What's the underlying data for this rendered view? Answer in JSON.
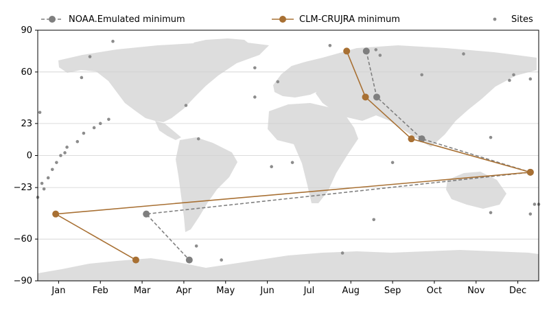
{
  "chart_data": {
    "type": "line",
    "x_ticks": [
      "Jan",
      "Feb",
      "Mar",
      "Apr",
      "May",
      "Jun",
      "Jul",
      "Aug",
      "Sep",
      "Oct",
      "Nov",
      "Dec"
    ],
    "y_ticks": [
      90,
      60,
      23,
      0,
      -23,
      -60,
      -90
    ],
    "y_tick_labels": [
      "90",
      "60",
      "23",
      "0",
      "−23",
      "−60",
      "−90"
    ],
    "ylim": [
      -90,
      90
    ],
    "xlim_months": [
      0.5,
      12.5
    ],
    "grid": "horizontal",
    "background": "world-map",
    "legend_position": "top",
    "series": [
      {
        "name": "NOAA.Emulated minimum",
        "color": "#7f7f7f",
        "style": "dashed",
        "x": [
          8.37,
          8.62,
          9.7,
          12.3,
          3.1,
          4.13
        ],
        "y": [
          75,
          42,
          12,
          -12,
          -42,
          -75
        ]
      },
      {
        "name": "CLM-CRUJRA minimum",
        "color": "#a87033",
        "style": "solid",
        "x": [
          7.9,
          8.35,
          9.45,
          12.3,
          0.93,
          2.85
        ],
        "y": [
          75,
          42,
          12,
          -12,
          -42,
          -75
        ]
      }
    ],
    "sites": {
      "name": "Sites",
      "color": "#8c8c8c",
      "x": [
        1.75,
        1.55,
        8.6,
        8.7,
        11.9,
        11.8,
        2.3,
        5.7,
        6.25,
        7.5,
        9.7,
        10.7,
        4.3,
        4.05,
        4.35,
        5.7,
        6.1,
        6.6,
        12.5,
        8.55,
        7.8,
        2.2,
        2.0,
        1.85,
        1.6,
        1.45,
        1.2,
        1.15,
        1.05,
        0.95,
        0.85,
        0.75,
        0.6,
        0.5,
        0.65,
        0.55,
        4.9,
        9.0,
        11.35,
        11.35,
        12.3,
        12.3,
        12.4
      ],
      "y": [
        71,
        56,
        76,
        72,
        58,
        54,
        82,
        63,
        53,
        79,
        58,
        73,
        -65,
        36,
        12,
        42,
        -8,
        -5,
        -35,
        -46,
        -70,
        26,
        23,
        20,
        16,
        10,
        6,
        2,
        0,
        -5,
        -10,
        -16,
        -20,
        -30,
        -24,
        31,
        -75,
        -5,
        13,
        -41,
        55,
        -42,
        -35
      ]
    }
  },
  "legend": {
    "noaa": "NOAA.Emulated minimum",
    "clm": "CLM-CRUJRA minimum",
    "sites": "Sites"
  }
}
